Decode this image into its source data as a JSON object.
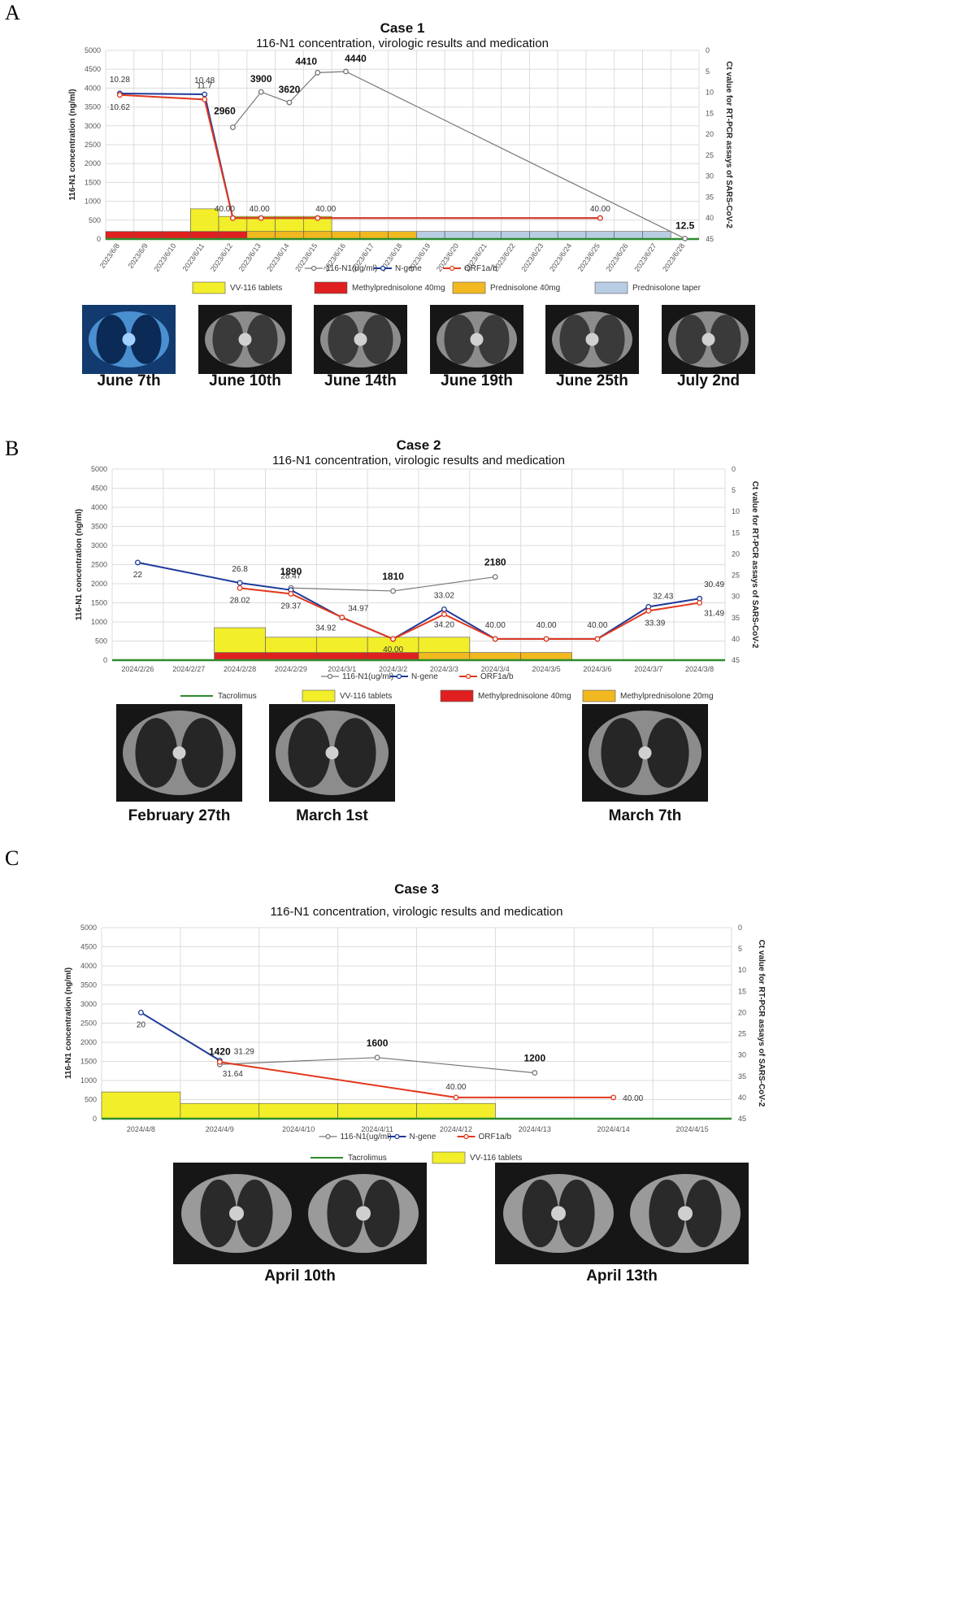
{
  "colors": {
    "n1": "#777777",
    "ngene": "#1f3a9a",
    "orf": "#e2381c",
    "vv116": "#f2ee2a",
    "methyl40": "#e02020",
    "pred40": "#f2b820",
    "taper": "#b8cce4",
    "methyl20": "#f2b820",
    "tacrolimus": "#2e8b2e"
  },
  "panels": [
    "A",
    "B",
    "C"
  ],
  "chart_data": [
    {
      "type": "line",
      "title": "Case 1",
      "subtitle": "116-N1 concentration, virologic results and medication",
      "ylabel": "116-N1 concentration (ng/ml)",
      "y2label": "Ct value for RT-PCR assays of SARS-CoV-2",
      "ylim": [
        0,
        5000
      ],
      "y2lim": [
        0,
        45
      ],
      "yticks": [
        0,
        500,
        1000,
        1500,
        2000,
        2500,
        3000,
        3500,
        4000,
        4500,
        5000
      ],
      "y2ticks": [
        0,
        5,
        10,
        15,
        20,
        25,
        30,
        35,
        40,
        45
      ],
      "categories": [
        "2023/6/8",
        "2023/6/9",
        "2023/6/10",
        "2023/6/11",
        "2023/6/12",
        "2023/6/13",
        "2023/6/14",
        "2023/6/15",
        "2023/6/16",
        "2023/6/17",
        "2023/6/18",
        "2023/6/19",
        "2023/6/20",
        "2023/6/21",
        "2023/6/22",
        "2023/6/23",
        "2023/6/24",
        "2023/6/25",
        "2023/6/26",
        "2023/6/27",
        "2023/6/28"
      ],
      "series": [
        {
          "name": "116-N1(ug/ml)",
          "axis": "left",
          "points": [
            [
              4,
              2960
            ],
            [
              5,
              3900
            ],
            [
              6,
              3620
            ],
            [
              7,
              4410
            ],
            [
              8,
              4440
            ],
            [
              20,
              12.5
            ]
          ]
        },
        {
          "name": "N-gene",
          "axis": "right",
          "points": [
            [
              0,
              10.28
            ],
            [
              3,
              10.48
            ],
            [
              4,
              40.0
            ],
            [
              5,
              40.0
            ],
            [
              7,
              40.0
            ],
            [
              17,
              40.0
            ]
          ]
        },
        {
          "name": "ORF1a/b",
          "axis": "right",
          "points": [
            [
              0,
              10.62
            ],
            [
              3,
              11.7
            ],
            [
              4,
              40.0
            ],
            [
              5,
              40.0
            ],
            [
              7,
              40.0
            ],
            [
              17,
              40.0
            ]
          ]
        }
      ],
      "n1_labels": [
        {
          "point": 0,
          "text": "2960"
        },
        {
          "point": 1,
          "text": "3900"
        },
        {
          "point": 2,
          "text": "3620"
        },
        {
          "point": 3,
          "text": "4410"
        },
        {
          "point": 4,
          "text": "4440"
        },
        {
          "point": 5,
          "text": "12.5"
        }
      ],
      "ct_labels": [
        {
          "text": "10.28"
        },
        {
          "text": "10.62"
        },
        {
          "text": "10.48"
        },
        {
          "text": "11.7"
        },
        {
          "text": "40.00"
        },
        {
          "text": "40.00"
        },
        {
          "text": "40.00"
        },
        {
          "text": "40.00"
        }
      ],
      "medication": [
        {
          "name": "VV-116 tablets",
          "color": "vv116",
          "start": 3,
          "end": 4,
          "value": 600
        },
        {
          "name": "VV-116 tablets",
          "color": "vv116",
          "start": 4,
          "end": 8,
          "value": 400
        },
        {
          "name": "Methylprednisolone 40mg",
          "color": "methyl40",
          "start": 0,
          "end": 5,
          "value": 200
        },
        {
          "name": "Prednisolone 40mg",
          "color": "pred40",
          "start": 5,
          "end": 11,
          "value": 200
        },
        {
          "name": "Prednisolone taper",
          "color": "taper",
          "start": 11,
          "end": 20,
          "value": 200
        }
      ],
      "tacrolimus": true,
      "line_legend": [
        "116-N1(ug/ml)",
        "N-gene",
        "ORF1a/b"
      ],
      "med_legend": [
        "VV-116 tablets",
        "Methylprednisolone 40mg",
        "Prednisolone 40mg",
        "Prednisolone taper"
      ],
      "ct_scans": [
        "June 7th",
        "June 10th",
        "June 14th",
        "June 19th",
        "June 25th",
        "July 2nd"
      ]
    },
    {
      "type": "line",
      "title": "Case 2",
      "subtitle": "116-N1 concentration, virologic results and medication",
      "ylabel": "116-N1 concentration (ng/ml)",
      "y2label": "Ct value for RT-PCR assays of SARS-CoV-2",
      "ylim": [
        0,
        5000
      ],
      "y2lim": [
        0,
        45
      ],
      "yticks": [
        0,
        500,
        1000,
        1500,
        2000,
        2500,
        3000,
        3500,
        4000,
        4500,
        5000
      ],
      "y2ticks": [
        0,
        5,
        10,
        15,
        20,
        25,
        30,
        35,
        40,
        45
      ],
      "categories": [
        "2024/2/26",
        "2024/2/27",
        "2024/2/28",
        "2024/2/29",
        "2024/3/1",
        "2024/3/2",
        "2024/3/3",
        "2024/3/4",
        "2024/3/5",
        "2024/3/6",
        "2024/3/7",
        "2024/3/8"
      ],
      "series": [
        {
          "name": "116-N1(ug/ml)",
          "axis": "left",
          "points": [
            [
              3,
              1890
            ],
            [
              5,
              1810
            ],
            [
              7,
              2180
            ]
          ]
        },
        {
          "name": "N-gene",
          "axis": "right",
          "points": [
            [
              0,
              22
            ],
            [
              2,
              26.8
            ],
            [
              3,
              28.47
            ],
            [
              4,
              34.97
            ],
            [
              5,
              40.0
            ],
            [
              6,
              33.02
            ],
            [
              7,
              40.0
            ],
            [
              8,
              40.0
            ],
            [
              9,
              40.0
            ],
            [
              10,
              32.43
            ],
            [
              11,
              30.49
            ]
          ]
        },
        {
          "name": "ORF1a/b",
          "axis": "right",
          "points": [
            [
              2,
              28.02
            ],
            [
              3,
              29.37
            ],
            [
              4,
              34.92
            ],
            [
              5,
              40.0
            ],
            [
              6,
              34.2
            ],
            [
              7,
              40.0
            ],
            [
              8,
              40.0
            ],
            [
              9,
              40.0
            ],
            [
              10,
              33.39
            ],
            [
              11,
              31.49
            ]
          ]
        }
      ],
      "n1_labels": [
        {
          "point": 0,
          "text": "1890"
        },
        {
          "point": 1,
          "text": "1810"
        },
        {
          "point": 2,
          "text": "2180"
        }
      ],
      "ct_labels": [
        {
          "text": "22"
        },
        {
          "text": "26.8"
        },
        {
          "text": "28.02"
        },
        {
          "text": "28.47"
        },
        {
          "text": "29.37"
        },
        {
          "text": "34.97"
        },
        {
          "text": "34.92"
        },
        {
          "text": "40.00"
        },
        {
          "text": "33.02"
        },
        {
          "text": "34.20"
        },
        {
          "text": "40.00"
        },
        {
          "text": "40.00"
        },
        {
          "text": "40.00"
        },
        {
          "text": "32.43"
        },
        {
          "text": "33.39"
        },
        {
          "text": "30.49"
        },
        {
          "text": "31.49"
        }
      ],
      "medication": [
        {
          "name": "VV-116 tablets",
          "color": "vv116",
          "start": 2,
          "end": 3,
          "value": 650
        },
        {
          "name": "VV-116 tablets",
          "color": "vv116",
          "start": 3,
          "end": 7,
          "value": 400
        },
        {
          "name": "Methylprednisolone 40mg",
          "color": "methyl40",
          "start": 2,
          "end": 6,
          "value": 200
        },
        {
          "name": "Methylprednisolone 20mg",
          "color": "methyl20",
          "start": 6,
          "end": 9,
          "value": 200
        }
      ],
      "tacrolimus": true,
      "line_legend": [
        "116-N1(ug/ml)",
        "N-gene",
        "ORF1a/b"
      ],
      "med_legend": [
        "Tacrolimus",
        "VV-116 tablets",
        "Methylprednisolone 40mg",
        "Methylprednisolone 20mg"
      ],
      "ct_scans": [
        "February 27th",
        "March 1st",
        "March 7th"
      ]
    },
    {
      "type": "line",
      "title": "Case 3",
      "subtitle": "116-N1 concentration, virologic results and medication",
      "ylabel": "116-N1 concentration (ng/ml)",
      "y2label": "Ct value for RT-PCR assays of SARS-CoV-2",
      "ylim": [
        0,
        5000
      ],
      "y2lim": [
        0,
        45
      ],
      "yticks": [
        0,
        500,
        1000,
        1500,
        2000,
        2500,
        3000,
        3500,
        4000,
        4500,
        5000
      ],
      "y2ticks": [
        0,
        5,
        10,
        15,
        20,
        25,
        30,
        35,
        40,
        45
      ],
      "categories": [
        "2024/4/8",
        "2024/4/9",
        "2024/4/10",
        "2024/4/11",
        "2024/4/12",
        "2024/4/13",
        "2024/4/14",
        "2024/4/15"
      ],
      "series": [
        {
          "name": "116-N1(ug/ml)",
          "axis": "left",
          "points": [
            [
              1,
              1420
            ],
            [
              3,
              1600
            ],
            [
              5,
              1200
            ]
          ]
        },
        {
          "name": "N-gene",
          "axis": "right",
          "points": [
            [
              0,
              20
            ],
            [
              1,
              31.29
            ]
          ]
        },
        {
          "name": "ORF1a/b",
          "axis": "right",
          "points": [
            [
              1,
              31.64
            ],
            [
              4,
              40.0
            ],
            [
              6,
              40.0
            ]
          ]
        }
      ],
      "n1_labels": [
        {
          "point": 0,
          "text": "1420"
        },
        {
          "point": 1,
          "text": "1600"
        },
        {
          "point": 2,
          "text": "1200"
        }
      ],
      "ct_labels": [
        {
          "text": "20"
        },
        {
          "text": "31.29"
        },
        {
          "text": "31.64"
        },
        {
          "text": "40.00"
        },
        {
          "text": "40.00"
        }
      ],
      "medication": [
        {
          "name": "VV-116 tablets",
          "color": "vv116",
          "start": 0,
          "end": 1,
          "value": 700
        },
        {
          "name": "VV-116 tablets",
          "color": "vv116",
          "start": 1,
          "end": 5,
          "value": 400
        }
      ],
      "tacrolimus": true,
      "line_legend": [
        "116-N1(ug/ml)",
        "N-gene",
        "ORF1a/b"
      ],
      "med_legend": [
        "Tacrolimus",
        "VV-116 tablets"
      ],
      "ct_scans": [
        "April 10th",
        "April 13th"
      ]
    }
  ]
}
